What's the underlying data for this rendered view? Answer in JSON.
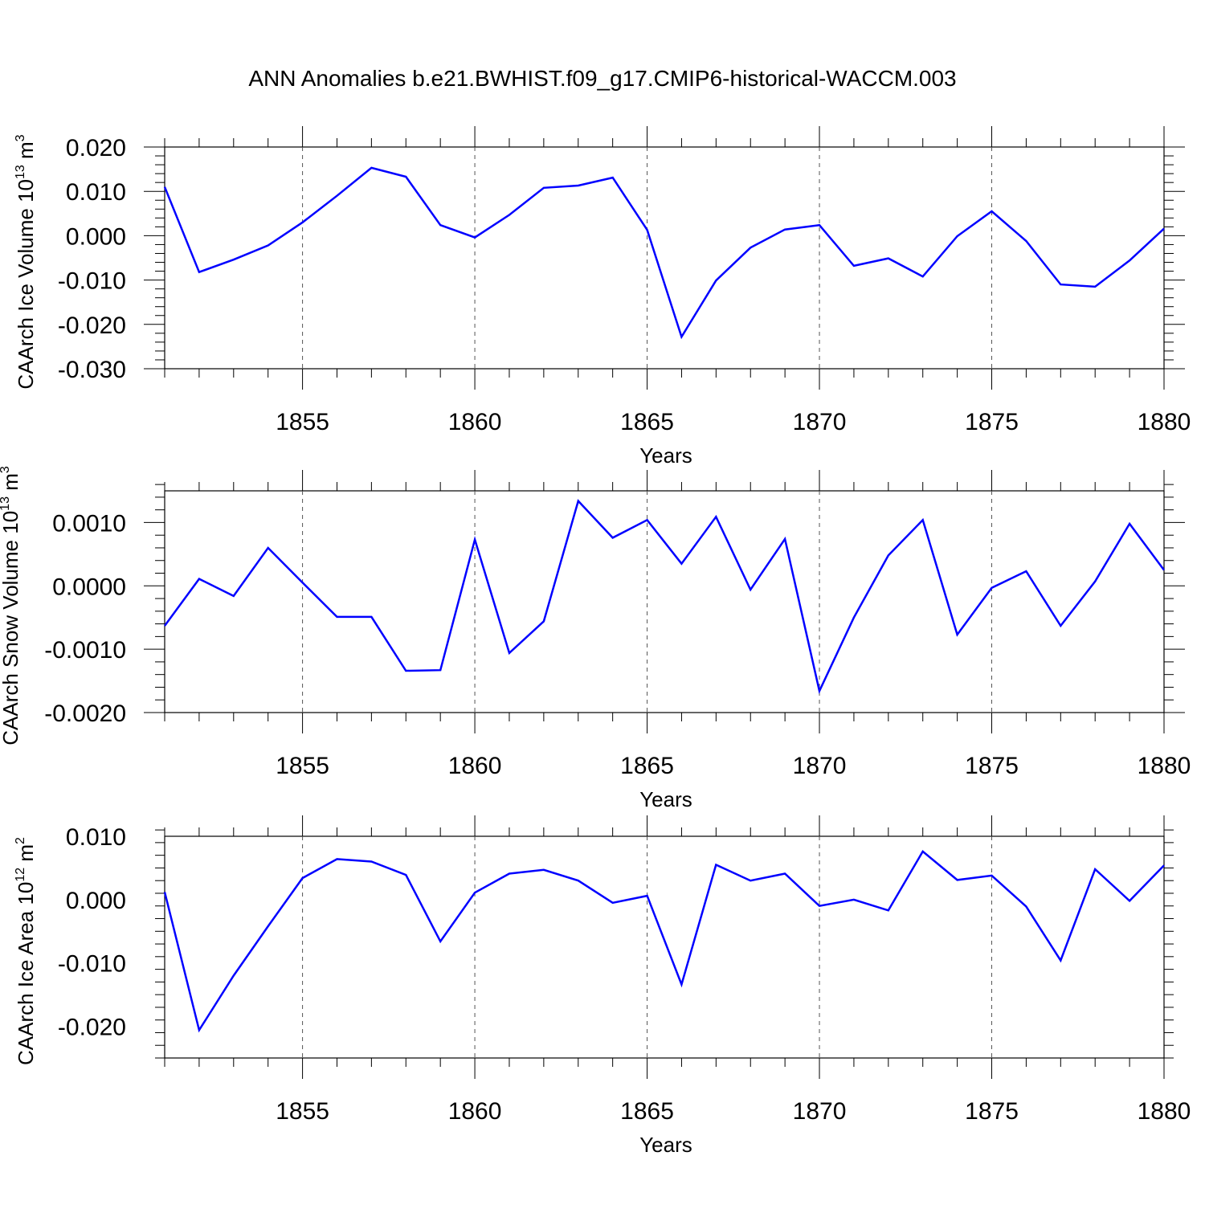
{
  "title": "ANN Anomalies b.e21.BWHIST.f09_g17.CMIP6-historical-WACCM.003",
  "line_color": "#0000ff",
  "chart_data": [
    {
      "type": "line",
      "ylabel": "CAArch Ice Volume 10",
      "ylabel_exp": "13",
      "ylabel_unit": " m",
      "ylabel_unit_exp": "3",
      "xlabel": "Years",
      "xlim": [
        1851,
        1880
      ],
      "ylim": [
        -0.03,
        0.02
      ],
      "xticks": [
        1855,
        1860,
        1865,
        1870,
        1875,
        1880
      ],
      "xtick_labels": [
        "1855",
        "1860",
        "1865",
        "1870",
        "1875",
        "1880"
      ],
      "yticks": [
        0.02,
        0.01,
        0.0,
        -0.01,
        -0.02,
        -0.03
      ],
      "ytick_labels": [
        "0.020",
        "0.010",
        "0.000",
        "-0.010",
        "-0.020",
        "-0.030"
      ],
      "grid": "vertical dashed at major x ticks",
      "x": [
        1851,
        1852,
        1853,
        1854,
        1855,
        1856,
        1857,
        1858,
        1859,
        1860,
        1861,
        1862,
        1863,
        1864,
        1865,
        1866,
        1867,
        1868,
        1869,
        1870,
        1871,
        1872,
        1873,
        1874,
        1875,
        1876,
        1877,
        1878,
        1879,
        1880
      ],
      "y": [
        0.011,
        -0.0082,
        -0.0054,
        -0.0022,
        0.003,
        0.009,
        0.0153,
        0.0133,
        0.0024,
        -0.0004,
        0.0047,
        0.0108,
        0.0113,
        0.0131,
        0.0013,
        -0.0228,
        -0.0101,
        -0.0027,
        0.0014,
        0.0024,
        -0.0068,
        -0.0051,
        -0.0092,
        -0.0001,
        0.0055,
        -0.0012,
        -0.011,
        -0.0115,
        -0.0056,
        0.0016
      ]
    },
    {
      "type": "line",
      "ylabel": "CAArch Snow Volume 10",
      "ylabel_exp": "13",
      "ylabel_unit": " m",
      "ylabel_unit_exp": "3",
      "xlabel": "Years",
      "xlim": [
        1851,
        1880
      ],
      "ylim": [
        -0.002,
        0.0015
      ],
      "xticks": [
        1855,
        1860,
        1865,
        1870,
        1875,
        1880
      ],
      "xtick_labels": [
        "1855",
        "1860",
        "1865",
        "1870",
        "1875",
        "1880"
      ],
      "yticks": [
        0.001,
        0.0,
        -0.001,
        -0.002
      ],
      "ytick_labels": [
        "0.0010",
        "0.0000",
        "-0.0010",
        "-0.0020"
      ],
      "grid": "vertical dashed at major x ticks",
      "x": [
        1851,
        1852,
        1853,
        1854,
        1855,
        1856,
        1857,
        1858,
        1859,
        1860,
        1861,
        1862,
        1863,
        1864,
        1865,
        1866,
        1867,
        1868,
        1869,
        1870,
        1871,
        1872,
        1873,
        1874,
        1875,
        1876,
        1877,
        1878,
        1879,
        1880
      ],
      "y": [
        -0.00063,
        0.00011,
        -0.00016,
        0.0006,
        5e-05,
        -0.00049,
        -0.00049,
        -0.00134,
        -0.00133,
        0.00073,
        -0.00106,
        -0.00056,
        0.00134,
        0.00076,
        0.00104,
        0.00035,
        0.00109,
        -6e-05,
        0.00074,
        -0.00166,
        -0.0005,
        0.00048,
        0.00104,
        -0.00077,
        -3e-05,
        0.00023,
        -0.00063,
        7e-05,
        0.00098,
        0.00025
      ]
    },
    {
      "type": "line",
      "ylabel": "CAArch Ice Area 10",
      "ylabel_exp": "12",
      "ylabel_unit": " m",
      "ylabel_unit_exp": "2",
      "xlabel": "Years",
      "xlim": [
        1851,
        1880
      ],
      "ylim": [
        -0.025,
        0.01
      ],
      "xticks": [
        1855,
        1860,
        1865,
        1870,
        1875,
        1880
      ],
      "xtick_labels": [
        "1855",
        "1860",
        "1865",
        "1870",
        "1875",
        "1880"
      ],
      "yticks": [
        0.01,
        0.0,
        -0.01,
        -0.02
      ],
      "ytick_labels": [
        "0.010",
        "0.000",
        "-0.010",
        "-0.020"
      ],
      "grid": "vertical dashed at major x ticks",
      "x": [
        1851,
        1852,
        1853,
        1854,
        1855,
        1856,
        1857,
        1858,
        1859,
        1860,
        1861,
        1862,
        1863,
        1864,
        1865,
        1866,
        1867,
        1868,
        1869,
        1870,
        1871,
        1872,
        1873,
        1874,
        1875,
        1876,
        1877,
        1878,
        1879,
        1880
      ],
      "y": [
        0.0012,
        -0.0206,
        -0.012,
        -0.0042,
        0.0034,
        0.0064,
        0.006,
        0.0039,
        -0.0066,
        0.0011,
        0.0041,
        0.0047,
        0.003,
        -0.0005,
        0.0006,
        -0.0134,
        0.0055,
        0.003,
        0.0041,
        -0.001,
        0.0,
        -0.0017,
        0.0076,
        0.0031,
        0.0038,
        -0.0011,
        -0.0096,
        0.0048,
        -0.0002,
        0.0054
      ]
    }
  ]
}
